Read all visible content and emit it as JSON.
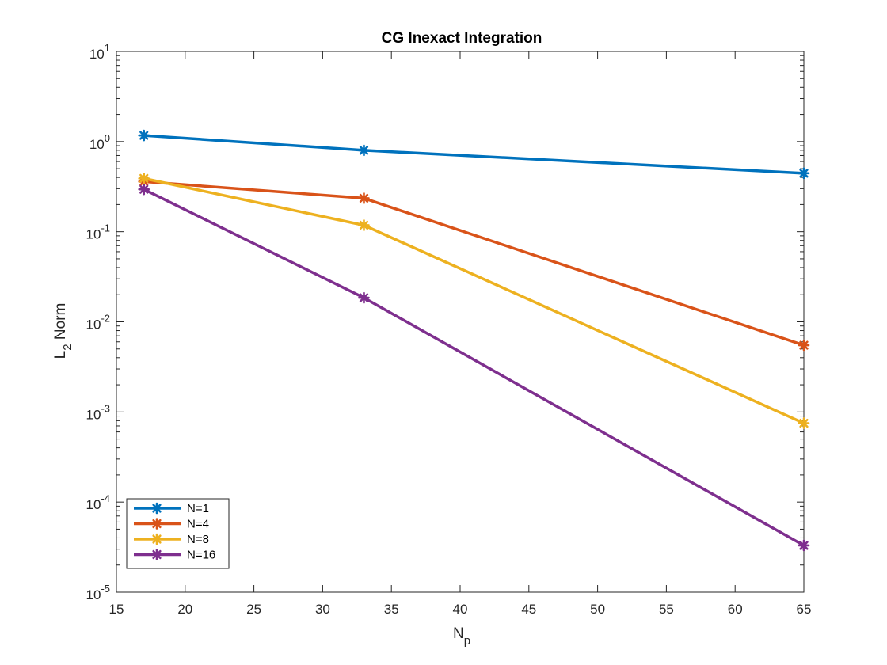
{
  "chart_data": {
    "type": "line",
    "title": "CG Inexact Integration",
    "xlabel": {
      "main": "N",
      "sub": "p"
    },
    "ylabel": {
      "pre": "L",
      "sub": "2",
      "post": " Norm"
    },
    "xlim": [
      15,
      65
    ],
    "ylim": [
      1e-05,
      10
    ],
    "yscale": "log",
    "grid": false,
    "legend_position": "bottom-left",
    "x_ticks": [
      "15",
      "20",
      "25",
      "30",
      "35",
      "40",
      "45",
      "50",
      "55",
      "60",
      "65"
    ],
    "y_ticks": [
      {
        "base": "10",
        "exp": "1"
      },
      {
        "base": "10",
        "exp": "0"
      },
      {
        "base": "10",
        "exp": "-1"
      },
      {
        "base": "10",
        "exp": "-2"
      },
      {
        "base": "10",
        "exp": "-3"
      },
      {
        "base": "10",
        "exp": "-4"
      },
      {
        "base": "10",
        "exp": "-5"
      }
    ],
    "x": [
      17,
      33,
      65
    ],
    "series": [
      {
        "name": "N=1",
        "color": "#0072BD",
        "values": [
          1.17,
          0.8,
          0.445
        ]
      },
      {
        "name": "N=4",
        "color": "#D95319",
        "values": [
          0.36,
          0.235,
          0.0055
        ]
      },
      {
        "name": "N=8",
        "color": "#EDB120",
        "values": [
          0.39,
          0.118,
          0.00075
        ]
      },
      {
        "name": "N=16",
        "color": "#7E2F8E",
        "values": [
          0.295,
          0.0185,
          3.3e-05
        ]
      }
    ]
  }
}
